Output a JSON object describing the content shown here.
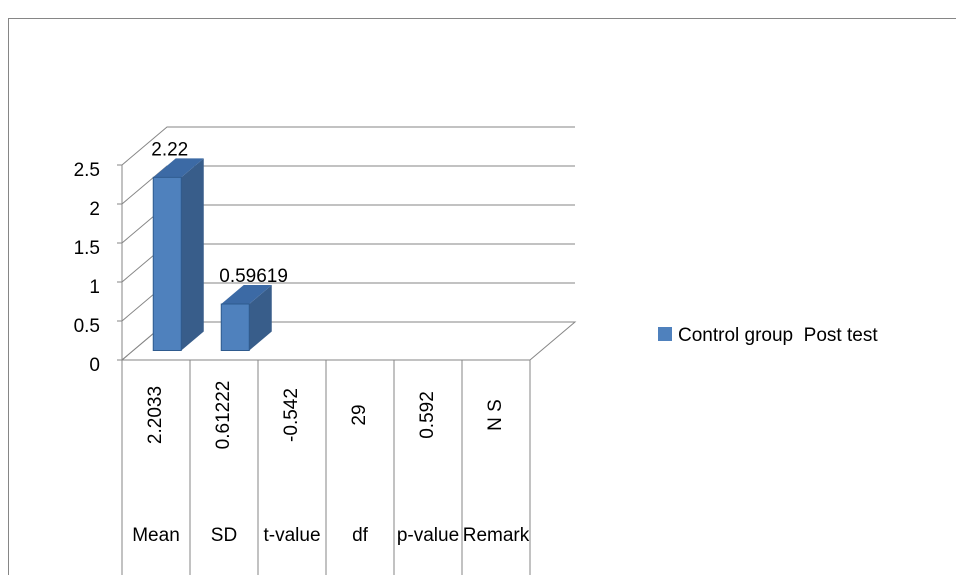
{
  "chart_data": {
    "type": "bar3d",
    "categories": [
      "Mean",
      "SD",
      "t-value",
      "df",
      "p-value",
      "Remark"
    ],
    "category_values": [
      "2.2033",
      "0.61222",
      "-0.542",
      "29",
      "0.592",
      "N S"
    ],
    "series": [
      {
        "name": "Control group  Post test",
        "color": "#4f81bd",
        "values": [
          2.22,
          0.59619,
          null,
          null,
          null,
          null
        ]
      }
    ],
    "ylim": [
      0,
      2.5
    ],
    "yticks": [
      0,
      0.5,
      1,
      1.5,
      2,
      2.5
    ],
    "grid": true,
    "legend": "right"
  }
}
